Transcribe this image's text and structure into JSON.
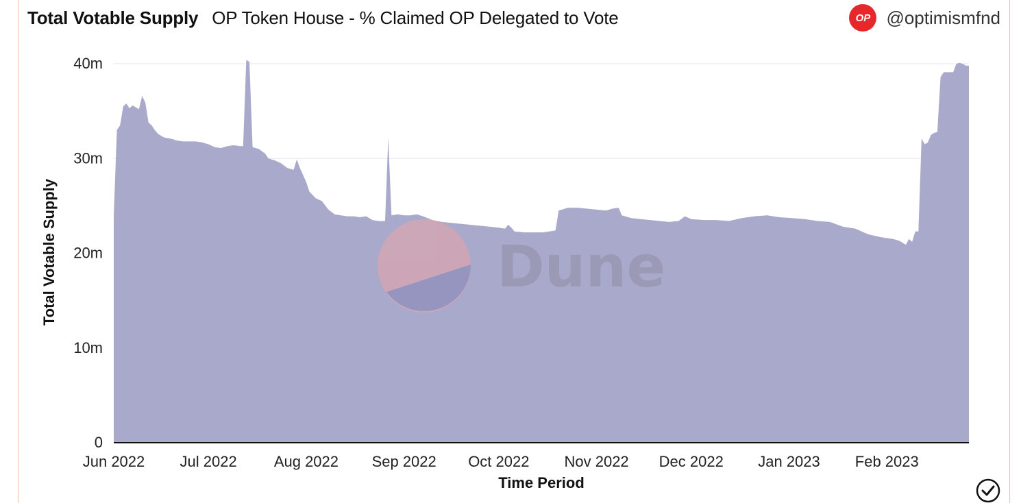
{
  "header": {
    "title": "Total Votable Supply",
    "subtitle": "OP Token House - % Claimed OP Delegated to Vote",
    "logo_text": "OP",
    "handle": "@optimismfnd"
  },
  "watermark": "Dune",
  "colors": {
    "area": "#a9a9cb",
    "brand_red": "#e8272b",
    "frame": "#f2b8b2"
  },
  "chart_data": {
    "type": "area",
    "xlabel": "Time Period",
    "ylabel": "Total Votable Supply",
    "ylim": [
      0,
      40000000
    ],
    "yticks": [
      {
        "value": 0,
        "label": "0"
      },
      {
        "value": 10000000,
        "label": "10m"
      },
      {
        "value": 20000000,
        "label": "20m"
      },
      {
        "value": 30000000,
        "label": "30m"
      },
      {
        "value": 40000000,
        "label": "40m"
      }
    ],
    "xlim": [
      "2022-06-01",
      "2023-02-27"
    ],
    "xticks": [
      {
        "date": "2022-06-01",
        "label": "Jun 2022"
      },
      {
        "date": "2022-07-01",
        "label": "Jul 2022"
      },
      {
        "date": "2022-08-01",
        "label": "Aug 2022"
      },
      {
        "date": "2022-09-01",
        "label": "Sep 2022"
      },
      {
        "date": "2022-10-01",
        "label": "Oct 2022"
      },
      {
        "date": "2022-11-01",
        "label": "Nov 2022"
      },
      {
        "date": "2022-12-01",
        "label": "Dec 2022"
      },
      {
        "date": "2023-01-01",
        "label": "Jan 2023"
      },
      {
        "date": "2023-02-01",
        "label": "Feb 2023"
      }
    ],
    "grid": true,
    "series": [
      {
        "color": "#a9a9cb",
        "points": [
          [
            "2022-06-01",
            24.0
          ],
          [
            "2022-06-02",
            33.0
          ],
          [
            "2022-06-03",
            33.5
          ],
          [
            "2022-06-04",
            35.5
          ],
          [
            "2022-06-05",
            35.8
          ],
          [
            "2022-06-06",
            35.3
          ],
          [
            "2022-06-07",
            35.6
          ],
          [
            "2022-06-08",
            35.4
          ],
          [
            "2022-06-09",
            35.2
          ],
          [
            "2022-06-10",
            36.6
          ],
          [
            "2022-06-11",
            35.9
          ],
          [
            "2022-06-12",
            33.8
          ],
          [
            "2022-06-13",
            33.5
          ],
          [
            "2022-06-14",
            33.0
          ],
          [
            "2022-06-15",
            32.6
          ],
          [
            "2022-06-16",
            32.4
          ],
          [
            "2022-06-17",
            32.2
          ],
          [
            "2022-06-19",
            32.1
          ],
          [
            "2022-06-21",
            31.9
          ],
          [
            "2022-06-23",
            31.8
          ],
          [
            "2022-06-25",
            31.8
          ],
          [
            "2022-06-27",
            31.8
          ],
          [
            "2022-06-29",
            31.7
          ],
          [
            "2022-07-01",
            31.5
          ],
          [
            "2022-07-03",
            31.2
          ],
          [
            "2022-07-05",
            31.1
          ],
          [
            "2022-07-07",
            31.3
          ],
          [
            "2022-07-09",
            31.4
          ],
          [
            "2022-07-11",
            31.3
          ],
          [
            "2022-07-12",
            31.3
          ],
          [
            "2022-07-13",
            40.4
          ],
          [
            "2022-07-14",
            40.2
          ],
          [
            "2022-07-15",
            31.2
          ],
          [
            "2022-07-17",
            31.0
          ],
          [
            "2022-07-19",
            30.5
          ],
          [
            "2022-07-20",
            30.0
          ],
          [
            "2022-07-22",
            29.8
          ],
          [
            "2022-07-24",
            29.5
          ],
          [
            "2022-07-26",
            29.0
          ],
          [
            "2022-07-28",
            28.8
          ],
          [
            "2022-07-29",
            29.9
          ],
          [
            "2022-07-30",
            29.0
          ],
          [
            "2022-08-01",
            27.5
          ],
          [
            "2022-08-02",
            26.5
          ],
          [
            "2022-08-04",
            25.8
          ],
          [
            "2022-08-06",
            25.5
          ],
          [
            "2022-08-08",
            24.6
          ],
          [
            "2022-08-10",
            24.1
          ],
          [
            "2022-08-12",
            24.0
          ],
          [
            "2022-08-14",
            23.9
          ],
          [
            "2022-08-16",
            23.9
          ],
          [
            "2022-08-18",
            23.8
          ],
          [
            "2022-08-20",
            23.9
          ],
          [
            "2022-08-22",
            23.5
          ],
          [
            "2022-08-24",
            23.4
          ],
          [
            "2022-08-26",
            23.4
          ],
          [
            "2022-08-27",
            32.2
          ],
          [
            "2022-08-28",
            24.0
          ],
          [
            "2022-08-30",
            24.1
          ],
          [
            "2022-09-01",
            24.0
          ],
          [
            "2022-09-03",
            24.0
          ],
          [
            "2022-09-05",
            24.1
          ],
          [
            "2022-09-07",
            23.9
          ],
          [
            "2022-09-10",
            23.5
          ],
          [
            "2022-09-13",
            23.3
          ],
          [
            "2022-09-16",
            23.2
          ],
          [
            "2022-09-19",
            23.1
          ],
          [
            "2022-09-22",
            23.0
          ],
          [
            "2022-09-25",
            22.9
          ],
          [
            "2022-09-28",
            22.8
          ],
          [
            "2022-10-01",
            22.7
          ],
          [
            "2022-10-03",
            22.6
          ],
          [
            "2022-10-04",
            23.0
          ],
          [
            "2022-10-05",
            22.7
          ],
          [
            "2022-10-06",
            22.3
          ],
          [
            "2022-10-09",
            22.2
          ],
          [
            "2022-10-12",
            22.2
          ],
          [
            "2022-10-15",
            22.2
          ],
          [
            "2022-10-17",
            22.3
          ],
          [
            "2022-10-19",
            22.4
          ],
          [
            "2022-10-20",
            24.5
          ],
          [
            "2022-10-23",
            24.8
          ],
          [
            "2022-10-26",
            24.8
          ],
          [
            "2022-10-29",
            24.7
          ],
          [
            "2022-11-01",
            24.6
          ],
          [
            "2022-11-04",
            24.5
          ],
          [
            "2022-11-06",
            24.7
          ],
          [
            "2022-11-08",
            24.8
          ],
          [
            "2022-11-09",
            24.0
          ],
          [
            "2022-11-12",
            23.7
          ],
          [
            "2022-11-15",
            23.6
          ],
          [
            "2022-11-18",
            23.5
          ],
          [
            "2022-11-21",
            23.4
          ],
          [
            "2022-11-24",
            23.3
          ],
          [
            "2022-11-27",
            23.4
          ],
          [
            "2022-11-29",
            23.9
          ],
          [
            "2022-12-01",
            23.6
          ],
          [
            "2022-12-05",
            23.5
          ],
          [
            "2022-12-09",
            23.5
          ],
          [
            "2022-12-13",
            23.4
          ],
          [
            "2022-12-17",
            23.7
          ],
          [
            "2022-12-21",
            23.9
          ],
          [
            "2022-12-25",
            24.0
          ],
          [
            "2022-12-29",
            23.8
          ],
          [
            "2023-01-02",
            23.7
          ],
          [
            "2023-01-06",
            23.6
          ],
          [
            "2023-01-10",
            23.4
          ],
          [
            "2023-01-14",
            23.3
          ],
          [
            "2023-01-18",
            22.8
          ],
          [
            "2023-01-22",
            22.6
          ],
          [
            "2023-01-26",
            22.0
          ],
          [
            "2023-01-30",
            21.7
          ],
          [
            "2023-02-03",
            21.5
          ],
          [
            "2023-02-05",
            21.3
          ],
          [
            "2023-02-07",
            20.9
          ],
          [
            "2023-02-08",
            21.5
          ],
          [
            "2023-02-09",
            21.2
          ],
          [
            "2023-02-10",
            22.3
          ],
          [
            "2023-02-11",
            22.3
          ],
          [
            "2023-02-12",
            32.1
          ],
          [
            "2023-02-13",
            31.5
          ],
          [
            "2023-02-14",
            31.7
          ],
          [
            "2023-02-15",
            32.5
          ],
          [
            "2023-02-16",
            32.7
          ],
          [
            "2023-02-17",
            32.8
          ],
          [
            "2023-02-18",
            38.6
          ],
          [
            "2023-02-19",
            39.1
          ],
          [
            "2023-02-20",
            39.1
          ],
          [
            "2023-02-22",
            39.1
          ],
          [
            "2023-02-23",
            40.0
          ],
          [
            "2023-02-24",
            40.1
          ],
          [
            "2023-02-25",
            40.0
          ],
          [
            "2023-02-26",
            39.8
          ],
          [
            "2023-02-27",
            39.8
          ]
        ]
      }
    ]
  }
}
